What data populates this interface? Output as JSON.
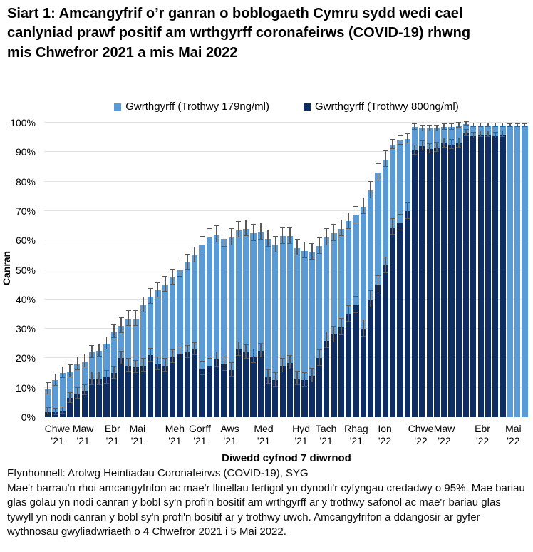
{
  "title": "Siart 1: Amcangyfrif o’r ganran o boblogaeth Cymru sydd wedi cael canlyniad prawf positif am wrthgyrff coronafeirws (COVID-19) rhwng mis Chwefror 2021 a mis Mai 2022",
  "legend": [
    {
      "label": "Gwrthgyrff (Trothwy 179ng/ml)",
      "color": "#5B9BD5"
    },
    {
      "label": "Gwrthgyrff (Trothwy 800ng/ml)",
      "color": "#0E2D62"
    }
  ],
  "y_axis": {
    "label": "Canran",
    "tick_values": [
      0,
      10,
      20,
      30,
      40,
      50,
      60,
      70,
      80,
      90,
      100
    ],
    "tick_suffix": "%"
  },
  "x_axis": {
    "title": "Diwedd cyfnod 7 diwrnod",
    "months": [
      {
        "label": "Chwe",
        "year": "'21",
        "center_index": 1.3
      },
      {
        "label": "Maw",
        "year": "'21",
        "center_index": 4.8
      },
      {
        "label": "Ebr",
        "year": "'21",
        "center_index": 8.8
      },
      {
        "label": "Mai",
        "year": "'21",
        "center_index": 12.2
      },
      {
        "label": "Meh",
        "year": "'21",
        "center_index": 17.3
      },
      {
        "label": "Gorff",
        "year": "'21",
        "center_index": 20.7
      },
      {
        "label": "Aws",
        "year": "'21",
        "center_index": 24.8
      },
      {
        "label": "Med",
        "year": "'21",
        "center_index": 29.4
      },
      {
        "label": "Hyd",
        "year": "'21",
        "center_index": 34.5
      },
      {
        "label": "Tach",
        "year": "'21",
        "center_index": 37.9
      },
      {
        "label": "Rhag",
        "year": "'21",
        "center_index": 42.0
      },
      {
        "label": "Ion",
        "year": "'22",
        "center_index": 45.9
      },
      {
        "label": "Chwe",
        "year": "'22",
        "center_index": 50.8
      },
      {
        "label": "Maw",
        "year": "'22",
        "center_index": 54.0
      },
      {
        "label": "Ebr",
        "year": "'22",
        "center_index": 59.2
      },
      {
        "label": "Mai",
        "year": "'22",
        "center_index": 63.4
      }
    ]
  },
  "footer": {
    "source": "Ffynhonnell: Arolwg Heintiadau Coronafeirws (COVID-19), SYG",
    "note": "Mae'r barrau'n rhoi amcangyfrifon ac mae'r llinellau fertigol yn dynodi'r cyfyngau credadwy o 95%. Mae bariau glas golau yn nodi canran y bobl sy'n profi'n bositif am wrthgyrff ar y trothwy safonol ac mae'r bariau glas tywyll yn nodi canran y bobl sy'n profi'n bositif ar y trothwy uwch. Amcangyfrifon a ddangosir ar gyfer wythnosau gwyliadwriaeth o 4 Chwefror 2021 i 5 Mai 2022."
  },
  "chart_data": {
    "type": "bar",
    "layout": "overlay",
    "n_bars": 66,
    "x_description": "Wythnosau gwyliadwriaeth wythnosol, 4 Chwefror 2021 i 5 Mai 2022",
    "ylabel": "Canran",
    "xlabel": "Diwedd cyfnod 7 diwrnod",
    "ylim": [
      0,
      100
    ],
    "grid": true,
    "gridline_color": "#e2e2e2",
    "error_bar_color": "#595959",
    "series": [
      {
        "name": "Gwrthgyrff (Trothwy 179ng/ml)",
        "color": "#5B9BD5",
        "values": [
          9.5,
          12.5,
          15,
          15.5,
          18,
          19,
          22,
          22.5,
          25,
          29,
          31,
          33.5,
          33.5,
          38,
          41,
          43,
          45,
          47.5,
          50,
          52.5,
          55,
          58.5,
          61,
          62,
          60.5,
          61,
          63.5,
          64,
          62.5,
          63,
          60.5,
          58.5,
          61.5,
          61.5,
          57.5,
          56.5,
          56,
          58,
          61,
          62.5,
          64,
          66.5,
          68.5,
          71.5,
          77,
          83,
          87.5,
          92.5,
          94,
          94.5,
          98.5,
          98,
          98,
          98,
          98.5,
          98.5,
          99,
          99.5,
          99,
          99,
          99,
          99,
          99,
          99,
          99,
          99
        ],
        "ci_halfwidth": [
          1.8,
          1.8,
          1.8,
          2,
          2,
          2,
          2,
          2,
          2,
          2,
          2.4,
          2.4,
          2.4,
          2.4,
          2.4,
          2.4,
          2.4,
          2.4,
          2.4,
          2.4,
          2.4,
          2.6,
          2.6,
          2.6,
          2.6,
          2.6,
          2.6,
          2.6,
          2.6,
          2.6,
          2.6,
          2.6,
          2.6,
          2.6,
          2.6,
          2.6,
          2.6,
          2.6,
          2.6,
          2.6,
          2.6,
          2.6,
          2.6,
          2.6,
          2.6,
          2.6,
          2.6,
          1.4,
          1.4,
          1.4,
          0.8,
          0.8,
          0.8,
          0.8,
          0.8,
          0.8,
          0.8,
          0.5,
          0.5,
          0.5,
          0.5,
          0.5,
          0.5,
          0.4,
          0.4,
          0.4
        ]
      },
      {
        "name": "Gwrthgyrff (Trothwy 800ng/ml)",
        "color": "#0E2D62",
        "values": [
          2,
          1.7,
          2.2,
          6.5,
          8,
          9,
          13,
          13,
          13.5,
          15,
          20,
          17.5,
          17,
          17.5,
          21,
          18,
          17.5,
          20.5,
          21.5,
          22,
          23,
          16.5,
          17.5,
          19.5,
          18,
          16,
          23,
          22,
          20.5,
          22.5,
          13.5,
          12.5,
          17.5,
          18.5,
          13,
          12.5,
          14,
          20,
          26,
          28,
          30.5,
          35,
          38,
          30,
          40,
          45,
          51.5,
          64.5,
          66,
          70,
          90.5,
          92,
          91,
          91.5,
          93,
          92.5,
          93,
          96.5,
          95.5,
          96,
          96,
          95.5,
          96,
          null,
          null,
          null
        ],
        "ci_halfwidth": [
          1,
          1,
          1,
          1.6,
          1.6,
          1.6,
          2,
          2,
          2,
          2,
          2,
          2,
          2,
          2,
          2,
          2,
          2,
          2,
          2,
          2,
          2,
          2.2,
          2.2,
          2.2,
          2.2,
          2.2,
          2.2,
          2.2,
          2.2,
          2.2,
          2.2,
          2.2,
          2.2,
          2.2,
          2.2,
          2.2,
          2.2,
          2.6,
          2.6,
          2.6,
          2.6,
          2.6,
          2.6,
          2.6,
          2.6,
          2.6,
          2.6,
          2.6,
          2.6,
          2.6,
          1.4,
          1.4,
          1.4,
          1.4,
          1.4,
          1.4,
          1.4,
          0.8,
          0.8,
          0.8,
          0.8,
          0.8,
          0.8,
          null,
          null,
          null
        ]
      }
    ]
  }
}
